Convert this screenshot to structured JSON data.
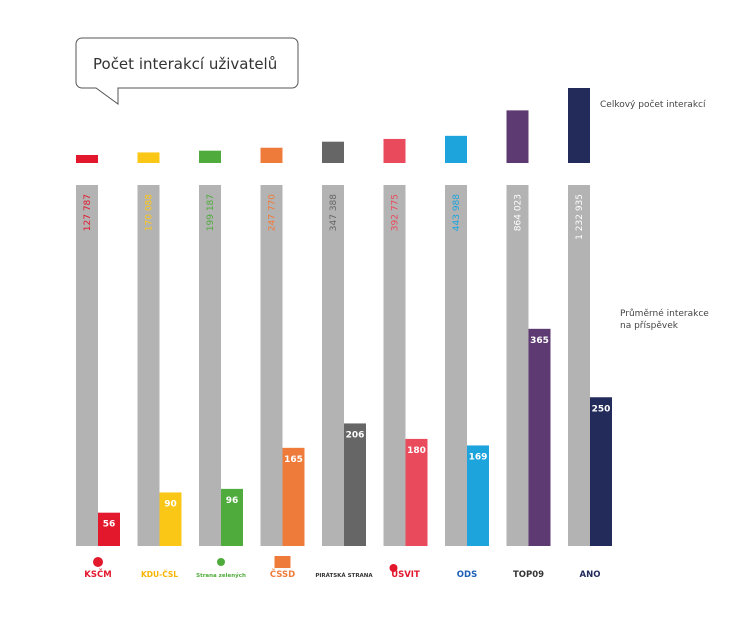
{
  "title": "Počet interakcí uživatelů",
  "annotations": {
    "total": "Celkový počet interakcí",
    "average_line1": "Průměrné interakce",
    "average_line2": "na příspěvek"
  },
  "chart_data": {
    "type": "bar",
    "categories": [
      "KSČM",
      "KDU-ČSL",
      "Strana zelených",
      "ČSSD",
      "Pirátská strana",
      "Úsvit",
      "ODS",
      "TOP 09",
      "ANO 2011"
    ],
    "series": [
      {
        "name": "Celkový počet interakcí",
        "values": [
          127787,
          170088,
          199187,
          247770,
          347388,
          392775,
          443988,
          864023,
          1232935
        ],
        "labels": [
          "127 787",
          "170 088",
          "199 187",
          "247 770",
          "347 388",
          "392 775",
          "443 988",
          "864 023",
          "1 232 935"
        ]
      },
      {
        "name": "Průměrné interakce na příspěvek",
        "values": [
          56,
          90,
          96,
          165,
          206,
          180,
          169,
          365,
          250
        ],
        "labels": [
          "56",
          "90",
          "96",
          "165",
          "206",
          "180",
          "169",
          "365",
          "250"
        ]
      }
    ],
    "colors": [
      "#e3182d",
      "#fbc716",
      "#4fab3b",
      "#ef7b3a",
      "#666666",
      "#e94a5c",
      "#1da4dd",
      "#5e3a72",
      "#232b5a"
    ],
    "total_label_colors": [
      "#e3182d",
      "#fbc716",
      "#4fab3b",
      "#ef7b3a",
      "#666666",
      "#e94a5c",
      "#1da4dd",
      "#ffffff",
      "#ffffff"
    ],
    "base_color": "#b3b3b3",
    "axis_break": true
  },
  "logos": [
    {
      "text": "KSČM",
      "color": "#e3182d"
    },
    {
      "text": "KDU-ČSL",
      "color": "#f6b400"
    },
    {
      "text": "Strana zelených",
      "color": "#4fab3b"
    },
    {
      "text": "ČSSD",
      "color": "#ef7b3a"
    },
    {
      "text": "PIRÁTSKÁ STRANA",
      "color": "#333333"
    },
    {
      "text": "ÚSVIT",
      "color": "#e3182d"
    },
    {
      "text": "ODS",
      "color": "#1d5fb5"
    },
    {
      "text": "TOP09",
      "color": "#333333"
    },
    {
      "text": "ANO",
      "color": "#232b5a"
    }
  ]
}
